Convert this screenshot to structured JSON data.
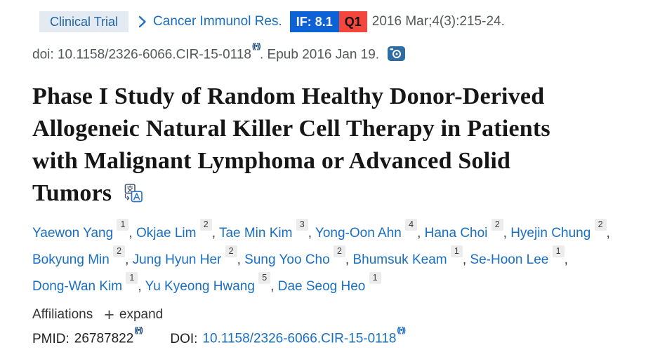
{
  "meta_bar": {
    "pub_type_badge": "Clinical Trial",
    "journal_link": "Cancer Immunol Res.",
    "if_badge": "IF: 8.1",
    "quartile_badge": "Q1",
    "citation_date": "2016 Mar;4(3):215-24."
  },
  "doi_line": {
    "text_before": "doi: 10.1158/2326-6066.CIR-15-0118",
    "scite_glyph": "((•))",
    "text_after": ". Epub 2016 Jan 19."
  },
  "title_lines": [
    "Phase I Study of Random Healthy Donor-Derived",
    "Allogeneic Natural Killer Cell Therapy in Patients",
    "with Malignant Lymphoma or Advanced Solid",
    "Tumors"
  ],
  "authors": [
    {
      "name": "Yaewon Yang",
      "sup": "1"
    },
    {
      "name": "Okjae Lim",
      "sup": "2"
    },
    {
      "name": "Tae Min Kim",
      "sup": "3"
    },
    {
      "name": "Yong-Oon Ahn",
      "sup": "4"
    },
    {
      "name": "Hana Choi",
      "sup": "2"
    },
    {
      "name": "Hyejin Chung",
      "sup": "2",
      "break_after": true
    },
    {
      "name": "Bokyung Min",
      "sup": "2"
    },
    {
      "name": "Jung Hyun Her",
      "sup": "2"
    },
    {
      "name": "Sung Yoo Cho",
      "sup": "2"
    },
    {
      "name": "Bhumsuk Keam",
      "sup": "1"
    },
    {
      "name": "Se-Hoon Lee",
      "sup": "1",
      "break_after": true
    },
    {
      "name": "Dong-Wan Kim",
      "sup": "1"
    },
    {
      "name": "Yu Kyeong Hwang",
      "sup": "5"
    },
    {
      "name": "Dae Seog Heo",
      "sup": "1"
    }
  ],
  "affiliations": {
    "label": "Affiliations",
    "plus": "+",
    "expand_label": "expand"
  },
  "ids": {
    "pmid_label": "PMID:",
    "pmid_value": "26787822",
    "doi_label": "DOI:",
    "doi_value": "10.1158/2326-6066.CIR-15-0118",
    "scite_glyph": "((•))"
  },
  "colors": {
    "link_blue": "#1a6fc0",
    "badge_type_bg": "#e3eaf2",
    "badge_type_text": "#2166a5",
    "if_badge_bg": "#0d63d6",
    "if_badge_text": "#ffffff",
    "q1_badge_bg": "#f4463d",
    "q1_badge_text": "#111111",
    "text_dark": "#212121",
    "text_gray": "#53575c",
    "chip_bg": "#ececec",
    "chip_text": "#3c3c3c",
    "title_color": "#161616",
    "scite_dark": "#24527f",
    "camera_blue": "#2e6da4"
  }
}
